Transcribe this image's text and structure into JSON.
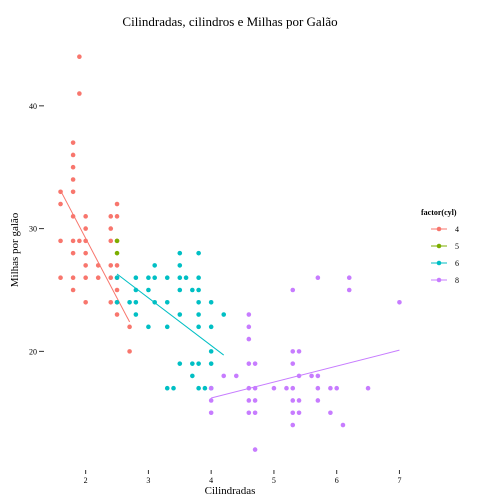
{
  "chart_data": {
    "type": "scatter",
    "title": "Cilindradas, cilindros e Milhas por Galão",
    "xlabel": "Cilindradas",
    "ylabel": "Milhas por galão",
    "xlim": [
      1.4,
      7.2
    ],
    "ylim": [
      10.5,
      45.2
    ],
    "x_ticks": [
      2,
      3,
      4,
      5,
      6,
      7
    ],
    "y_ticks": [
      20,
      30,
      40
    ],
    "grid": false,
    "legend": {
      "title": "factor(cyl)",
      "placement": "right"
    },
    "series": [
      {
        "name": "4",
        "color": "#F8766D",
        "points": [
          [
            1.6,
            33
          ],
          [
            1.6,
            32
          ],
          [
            1.6,
            29
          ],
          [
            1.6,
            26
          ],
          [
            1.8,
            37
          ],
          [
            1.8,
            36
          ],
          [
            1.8,
            35
          ],
          [
            1.8,
            34
          ],
          [
            1.8,
            33
          ],
          [
            1.8,
            31
          ],
          [
            1.8,
            29
          ],
          [
            1.8,
            28
          ],
          [
            1.8,
            26
          ],
          [
            1.8,
            25
          ],
          [
            1.9,
            44
          ],
          [
            1.9,
            41
          ],
          [
            1.9,
            29
          ],
          [
            2.0,
            31
          ],
          [
            2.0,
            30
          ],
          [
            2.0,
            29
          ],
          [
            2.0,
            28
          ],
          [
            2.0,
            27
          ],
          [
            2.0,
            26
          ],
          [
            2.0,
            24
          ],
          [
            2.2,
            27
          ],
          [
            2.2,
            26
          ],
          [
            2.4,
            31
          ],
          [
            2.4,
            30
          ],
          [
            2.4,
            29
          ],
          [
            2.4,
            27
          ],
          [
            2.4,
            26
          ],
          [
            2.4,
            24
          ],
          [
            2.5,
            32
          ],
          [
            2.5,
            31
          ],
          [
            2.5,
            29
          ],
          [
            2.5,
            27
          ],
          [
            2.5,
            26
          ],
          [
            2.5,
            25
          ],
          [
            2.5,
            24
          ],
          [
            2.5,
            23
          ],
          [
            2.7,
            22
          ],
          [
            2.7,
            20
          ]
        ],
        "trend": [
          [
            1.6,
            33.1
          ],
          [
            2.7,
            22.4
          ]
        ]
      },
      {
        "name": "5",
        "color": "#7CAE00",
        "points": [
          [
            2.5,
            29
          ],
          [
            2.5,
            28
          ]
        ]
      },
      {
        "name": "6",
        "color": "#00BFC4",
        "points": [
          [
            2.5,
            26
          ],
          [
            2.5,
            24
          ],
          [
            2.7,
            24
          ],
          [
            2.8,
            26
          ],
          [
            2.8,
            25
          ],
          [
            2.8,
            24
          ],
          [
            2.8,
            23
          ],
          [
            3.0,
            26
          ],
          [
            3.0,
            25
          ],
          [
            3.0,
            22
          ],
          [
            3.1,
            27
          ],
          [
            3.1,
            26
          ],
          [
            3.1,
            24
          ],
          [
            3.3,
            26
          ],
          [
            3.3,
            24
          ],
          [
            3.3,
            22
          ],
          [
            3.3,
            17
          ],
          [
            3.4,
            17
          ],
          [
            3.5,
            28
          ],
          [
            3.5,
            27
          ],
          [
            3.5,
            26
          ],
          [
            3.5,
            25
          ],
          [
            3.5,
            23
          ],
          [
            3.5,
            19
          ],
          [
            3.6,
            26
          ],
          [
            3.7,
            25
          ],
          [
            3.7,
            19
          ],
          [
            3.7,
            18
          ],
          [
            3.8,
            28
          ],
          [
            3.8,
            26
          ],
          [
            3.8,
            25
          ],
          [
            3.8,
            24
          ],
          [
            3.8,
            23
          ],
          [
            3.8,
            22
          ],
          [
            3.8,
            19
          ],
          [
            3.8,
            17
          ],
          [
            3.9,
            17
          ],
          [
            4.0,
            24
          ],
          [
            4.0,
            22
          ],
          [
            4.0,
            20
          ],
          [
            4.0,
            19
          ],
          [
            4.0,
            17
          ],
          [
            4.2,
            23
          ]
        ],
        "trend": [
          [
            2.5,
            26.3
          ],
          [
            4.2,
            19.7
          ]
        ]
      },
      {
        "name": "8",
        "color": "#C77CFF",
        "points": [
          [
            4.0,
            17
          ],
          [
            4.0,
            16
          ],
          [
            4.0,
            15
          ],
          [
            4.2,
            18
          ],
          [
            4.4,
            18
          ],
          [
            4.6,
            23
          ],
          [
            4.6,
            22
          ],
          [
            4.6,
            21
          ],
          [
            4.6,
            19
          ],
          [
            4.6,
            17
          ],
          [
            4.6,
            16
          ],
          [
            4.6,
            15
          ],
          [
            4.7,
            19
          ],
          [
            4.7,
            17
          ],
          [
            4.7,
            16
          ],
          [
            4.7,
            15
          ],
          [
            4.7,
            12
          ],
          [
            5.0,
            17
          ],
          [
            5.2,
            17
          ],
          [
            5.3,
            25
          ],
          [
            5.3,
            20
          ],
          [
            5.3,
            19
          ],
          [
            5.3,
            17
          ],
          [
            5.3,
            16
          ],
          [
            5.3,
            15
          ],
          [
            5.3,
            14
          ],
          [
            5.4,
            20
          ],
          [
            5.4,
            18
          ],
          [
            5.4,
            16
          ],
          [
            5.4,
            15
          ],
          [
            5.6,
            18
          ],
          [
            5.7,
            26
          ],
          [
            5.7,
            18
          ],
          [
            5.7,
            17
          ],
          [
            5.7,
            16
          ],
          [
            5.9,
            17
          ],
          [
            5.9,
            15
          ],
          [
            6.0,
            17
          ],
          [
            6.1,
            14
          ],
          [
            6.2,
            26
          ],
          [
            6.2,
            25
          ],
          [
            6.5,
            17
          ],
          [
            7.0,
            24
          ]
        ],
        "trend": [
          [
            4.0,
            16.2
          ],
          [
            7.0,
            20.1
          ]
        ]
      }
    ]
  }
}
